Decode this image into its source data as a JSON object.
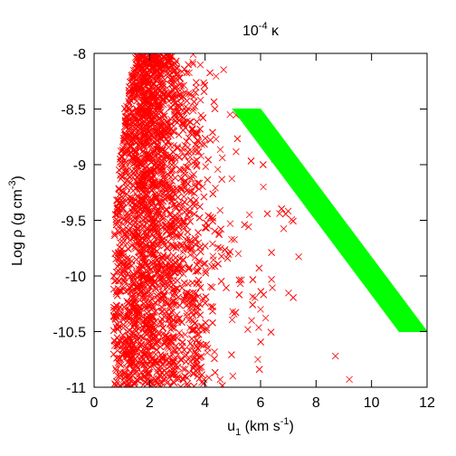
{
  "chart_data": {
    "type": "scatter",
    "title": {
      "prefix": "10",
      "exponent": "-4",
      "suffix": " κ"
    },
    "xlabel": {
      "base": "u",
      "subscript": "1",
      "units": " (km s",
      "units_exponent": "-1",
      "close": ")"
    },
    "ylabel": {
      "text": "Log ρ (g cm",
      "exponent": "-3",
      "close": ")"
    },
    "xlim": [
      0,
      12
    ],
    "ylim": [
      -11,
      -8
    ],
    "xticks": [
      "0",
      "2",
      "4",
      "6",
      "8",
      "10",
      "12"
    ],
    "yticks": [
      "-8",
      "-8.5",
      "-9",
      "-9.5",
      "-10",
      "-10.5",
      "-11"
    ],
    "grid": false,
    "legend": "none",
    "series": [
      {
        "marker": "x",
        "color": "#ff0000",
        "description_of_cloud": "dense cloud, x≈0.7–4.5 at all densities, scattered points out to x≈9",
        "cloud_envelope": [
          {
            "y": -8.0,
            "x_min": 1.5,
            "x_core_max": 2.6,
            "x_sparse_max": 4.0
          },
          {
            "y": -8.5,
            "x_min": 1.1,
            "x_core_max": 3.0,
            "x_sparse_max": 5.0
          },
          {
            "y": -9.0,
            "x_min": 0.9,
            "x_core_max": 3.2,
            "x_sparse_max": 5.8
          },
          {
            "y": -9.5,
            "x_min": 0.75,
            "x_core_max": 3.3,
            "x_sparse_max": 6.5
          },
          {
            "y": -10.0,
            "x_min": 0.7,
            "x_core_max": 3.4,
            "x_sparse_max": 6.8
          },
          {
            "y": -10.5,
            "x_min": 0.7,
            "x_core_max": 3.5,
            "x_sparse_max": 6.0
          },
          {
            "y": -11.0,
            "x_min": 0.7,
            "x_core_max": 3.6,
            "x_sparse_max": 5.0
          }
        ],
        "outliers": [
          {
            "x": 6.5,
            "y": -8.95
          },
          {
            "x": 6.1,
            "y": -9.2
          },
          {
            "x": 5.6,
            "y": -9.45
          },
          {
            "x": 5.2,
            "y": -9.8
          },
          {
            "x": 6.0,
            "y": -10.3
          },
          {
            "x": 5.9,
            "y": -10.75
          },
          {
            "x": 8.7,
            "y": -10.72
          },
          {
            "x": 9.2,
            "y": -10.93
          },
          {
            "x": 5.0,
            "y": -10.9
          },
          {
            "x": 4.9,
            "y": -8.55
          }
        ]
      },
      {
        "marker": "filled-band",
        "color": "#00ff00",
        "polygon": [
          {
            "x": 5.0,
            "y": -8.5
          },
          {
            "x": 6.0,
            "y": -8.5
          },
          {
            "x": 12.0,
            "y": -10.5
          },
          {
            "x": 11.0,
            "y": -10.5
          }
        ]
      }
    ]
  }
}
